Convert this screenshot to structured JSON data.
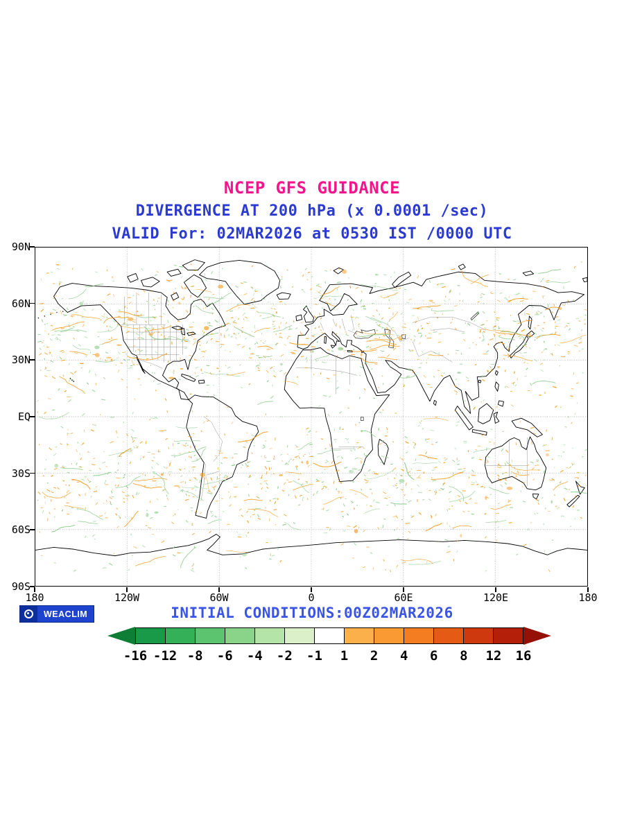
{
  "header": {
    "title": "NCEP GFS GUIDANCE",
    "subtitle": "DIVERGENCE AT 200 hPa (x 0.0001 /sec)",
    "valid": "VALID For: 02MAR2026 at 0530 IST /0000 UTC",
    "title_color": "#f5148c",
    "subtitle_color": "#2b3ad0"
  },
  "map": {
    "xtick_labels": [
      "180",
      "120W",
      "60W",
      "0",
      "60E",
      "120E",
      "180"
    ],
    "ytick_labels": [
      "90N",
      "60N",
      "30N",
      "EQ",
      "30S",
      "60S",
      "90S"
    ],
    "positive_color": "#f59c1e",
    "negative_color": "#8fce8f",
    "coastline_color": "#000000",
    "grid_style": "dotted graticule"
  },
  "footer": {
    "logo_text": "WEACLIM",
    "initial_conditions": "INITIAL CONDITIONS:00Z02MAR2026",
    "initial_conditions_color": "#3a55e6",
    "badge_bg": "#1e43cf"
  },
  "colorbar": {
    "labels": [
      "-16",
      "-12",
      "-8",
      "-6",
      "-4",
      "-2",
      "-1",
      "1",
      "2",
      "4",
      "6",
      "8",
      "12",
      "16"
    ],
    "left_arrow_color": "#0e7d35",
    "segment_colors": [
      "#199a48",
      "#33b058",
      "#5cc46e",
      "#8ad489",
      "#b5e4a8",
      "#dbf0c8",
      "#ffffff",
      "#fcb04c",
      "#fa9a32",
      "#f37d20",
      "#e55a15",
      "#cf390e",
      "#b31f08"
    ],
    "right_arrow_color": "#951107"
  },
  "chart_data": {
    "type": "heatmap",
    "title": "NCEP GFS GUIDANCE",
    "subtitle": "DIVERGENCE AT 200 hPa (x 0.0001 /sec)",
    "valid": "VALID For: 02MAR2026 at 0530 IST /0000 UTC",
    "initial_conditions": "INITIAL CONDITIONS:00Z02MAR2026",
    "variable": "Divergence at 200 hPa",
    "units": "x 0.0001 /sec",
    "projection": "equirectangular (lat/lon) world map",
    "x_axis": {
      "label": "longitude",
      "ticks": [
        "180",
        "120W",
        "60W",
        "0",
        "60E",
        "120E",
        "180"
      ],
      "range_deg": [
        -180,
        180
      ]
    },
    "y_axis": {
      "label": "latitude",
      "ticks": [
        "90N",
        "60N",
        "30N",
        "EQ",
        "30S",
        "60S",
        "90S"
      ],
      "range_deg": [
        -90,
        90
      ]
    },
    "grid": "dotted graticule every 30 deg latitude / 60 deg longitude",
    "legend_levels": [
      -16,
      -12,
      -8,
      -6,
      -4,
      -2,
      -1,
      1,
      2,
      4,
      6,
      8,
      12,
      16
    ],
    "legend_colors_low_to_high": [
      "#0e7d35",
      "#199a48",
      "#33b058",
      "#5cc46e",
      "#8ad489",
      "#b5e4a8",
      "#dbf0c8",
      "#ffffff",
      "#fcb04c",
      "#fa9a32",
      "#f37d20",
      "#e55a15",
      "#cf390e",
      "#b31f08",
      "#951107"
    ],
    "field_description": "Scattered small-scale filaments of upper-level divergence over the globe: positive values drawn in orange (mostly 1 to 2), negative values in pale green (mostly -2 to -1), densest along mid-latitude storm tracks of both hemispheres."
  }
}
